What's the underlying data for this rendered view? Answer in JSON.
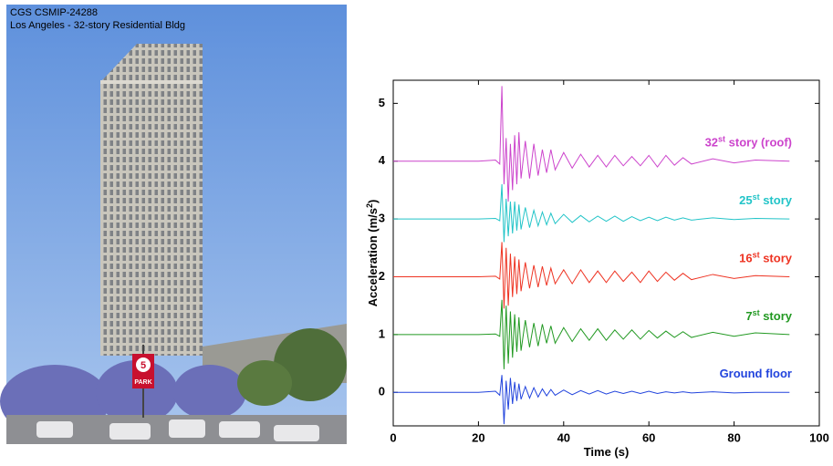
{
  "photo": {
    "caption": [
      "CGS CSMIP-24288",
      "Los Angeles - 32-story Residential Bldg"
    ],
    "sign": [
      "5",
      "PARK"
    ]
  },
  "chart_data": {
    "type": "line",
    "xlabel": "Time (s)",
    "ylabel": [
      "Acceleration (m/s",
      "2",
      ")"
    ],
    "xlim": [
      0,
      100
    ],
    "xticks": [
      0,
      20,
      40,
      60,
      80,
      100
    ],
    "ylim": [
      -0.58,
      5.4
    ],
    "yticks": [
      0,
      1,
      2,
      3,
      4,
      5
    ],
    "grid": false,
    "x": [
      0,
      20,
      24,
      25,
      25.5,
      26,
      26.5,
      27,
      27.5,
      28,
      28.5,
      29,
      29.5,
      30,
      31,
      32,
      33,
      34,
      35,
      36,
      37,
      38,
      40,
      42,
      44,
      46,
      48,
      50,
      52,
      54,
      56,
      58,
      60,
      62,
      64,
      66,
      68,
      70,
      75,
      80,
      85,
      93
    ],
    "series": [
      {
        "name": [
          "32",
          "st",
          " story (roof)"
        ],
        "color": "#cc44cc",
        "values": [
          4,
          4,
          4.02,
          3.95,
          5.3,
          3.6,
          4.4,
          3.3,
          4.3,
          3.5,
          4.45,
          3.6,
          4.5,
          3.7,
          4.35,
          3.7,
          4.3,
          3.75,
          4.2,
          3.8,
          4.2,
          3.85,
          4.15,
          3.88,
          4.12,
          3.9,
          4.1,
          3.9,
          4.1,
          3.92,
          4.08,
          3.92,
          4.1,
          3.9,
          4.1,
          3.93,
          4.06,
          3.95,
          4.04,
          3.97,
          4.02,
          4
        ]
      },
      {
        "name": [
          "25",
          "st",
          " story"
        ],
        "color": "#22c4c8",
        "values": [
          3,
          3,
          3.01,
          2.97,
          3.6,
          2.6,
          3.35,
          2.7,
          3.3,
          2.75,
          3.3,
          2.8,
          3.25,
          2.82,
          3.2,
          2.85,
          3.15,
          2.88,
          3.12,
          2.9,
          3.1,
          2.92,
          3.08,
          2.94,
          3.06,
          2.95,
          3.05,
          2.96,
          3.05,
          2.96,
          3.04,
          2.97,
          3.03,
          2.97,
          3.03,
          2.98,
          3.02,
          2.98,
          3.02,
          2.99,
          3.01,
          3
        ]
      },
      {
        "name": [
          "16",
          "st",
          " story"
        ],
        "color": "#ee3322",
        "values": [
          2,
          2,
          2.01,
          1.96,
          2.6,
          1.45,
          2.5,
          1.5,
          2.4,
          1.65,
          2.35,
          1.7,
          2.3,
          1.75,
          2.25,
          1.8,
          2.2,
          1.82,
          2.18,
          1.85,
          2.15,
          1.88,
          2.12,
          1.88,
          2.12,
          1.9,
          2.1,
          1.9,
          2.1,
          1.92,
          2.08,
          1.9,
          2.1,
          1.92,
          2.08,
          1.94,
          2.06,
          1.95,
          2.04,
          1.97,
          2.02,
          2
        ]
      },
      {
        "name": [
          "7",
          "st",
          " story"
        ],
        "color": "#229922",
        "values": [
          1,
          1,
          1.01,
          0.97,
          1.6,
          0.4,
          1.5,
          0.5,
          1.4,
          0.6,
          1.35,
          0.7,
          1.3,
          0.72,
          1.25,
          0.78,
          1.2,
          0.8,
          1.18,
          0.85,
          1.15,
          0.85,
          1.12,
          0.88,
          1.1,
          0.9,
          1.1,
          0.9,
          1.08,
          0.92,
          1.08,
          0.92,
          1.07,
          0.94,
          1.06,
          0.95,
          1.05,
          0.95,
          1.04,
          0.97,
          1.03,
          1
        ]
      },
      {
        "name": [
          "Ground floor"
        ],
        "color": "#2244dd",
        "values": [
          0,
          0,
          0.02,
          -0.05,
          0.3,
          -0.55,
          0.2,
          -0.3,
          0.25,
          -0.2,
          0.18,
          -0.15,
          0.15,
          -0.12,
          0.1,
          -0.1,
          0.08,
          -0.08,
          0.06,
          -0.06,
          0.05,
          -0.05,
          0.04,
          -0.04,
          0.03,
          -0.03,
          0.03,
          -0.03,
          0.02,
          -0.02,
          0.02,
          -0.02,
          0.02,
          -0.02,
          0.01,
          -0.01,
          0.01,
          -0.01,
          0.01,
          -0.01,
          0,
          0
        ]
      }
    ]
  }
}
